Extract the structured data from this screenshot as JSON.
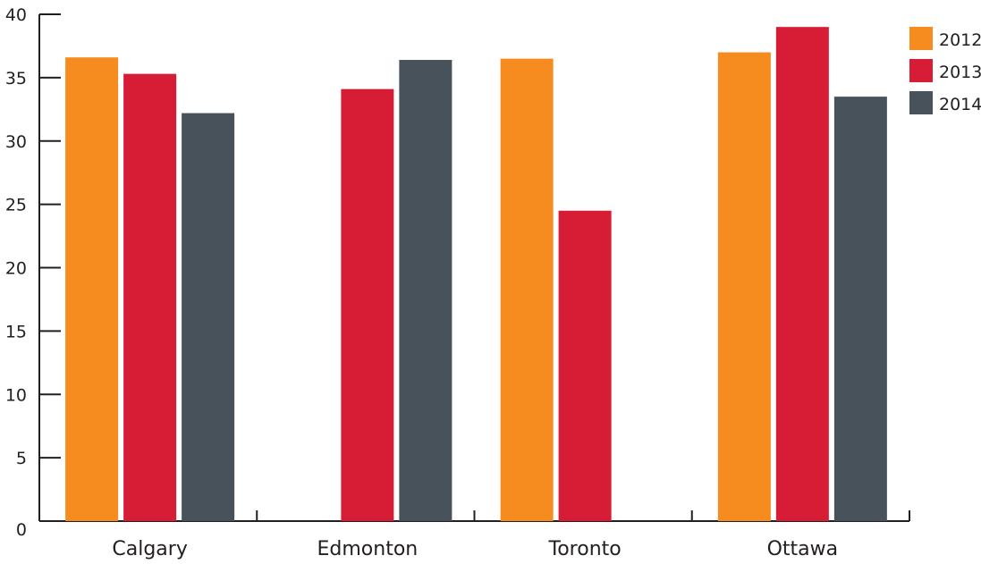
{
  "chart_data": {
    "type": "bar",
    "title": "",
    "xlabel": "",
    "ylabel": "",
    "categories": [
      "Calgary",
      "Edmonton",
      "Toronto",
      "Ottawa"
    ],
    "series": [
      {
        "name": "2012",
        "color": "#f68b1f",
        "values": [
          36.6,
          null,
          36.5,
          37.0
        ]
      },
      {
        "name": "2013",
        "color": "#d71d35",
        "values": [
          35.3,
          34.1,
          24.5,
          39.0
        ]
      },
      {
        "name": "2014",
        "color": "#48525a",
        "values": [
          32.2,
          36.4,
          null,
          33.5
        ]
      }
    ],
    "ylim": [
      0,
      40
    ],
    "yticks": [
      "0",
      "5",
      "10",
      "15",
      "20",
      "25",
      "30",
      "35",
      "40"
    ],
    "legend_position": "top-right",
    "grid": false
  }
}
